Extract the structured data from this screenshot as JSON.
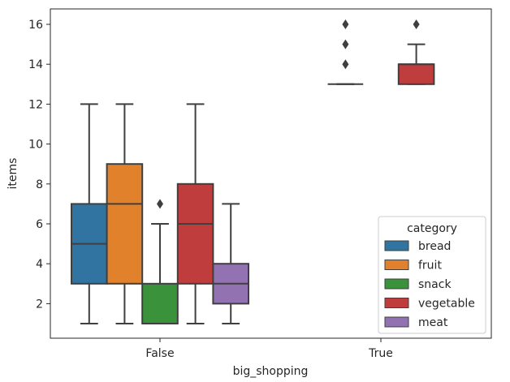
{
  "chart_data": {
    "type": "box",
    "xlabel": "big_shopping",
    "ylabel": "items",
    "categories": [
      "False",
      "True"
    ],
    "y_ticks": [
      2,
      4,
      6,
      8,
      10,
      12,
      14,
      16
    ],
    "ylim": [
      0.4,
      16.6
    ],
    "legend": {
      "title": "category",
      "placement": "lower right"
    },
    "series": [
      {
        "name": "bread",
        "color": "#3274a1",
        "boxes": [
          {
            "category": "False",
            "whisker_low": 1,
            "q1": 3,
            "median": 5,
            "q3": 7,
            "whisker_high": 12,
            "outliers": []
          },
          null
        ]
      },
      {
        "name": "fruit",
        "color": "#e1812c",
        "boxes": [
          {
            "category": "False",
            "whisker_low": 1,
            "q1": 3,
            "median": 7,
            "q3": 9,
            "whisker_high": 12,
            "outliers": []
          },
          {
            "category": "True",
            "whisker_low": 13,
            "q1": 13,
            "median": 13,
            "q3": 13,
            "whisker_high": 13,
            "outliers": [
              14,
              15,
              16
            ]
          }
        ]
      },
      {
        "name": "snack",
        "color": "#3a923a",
        "boxes": [
          {
            "category": "False",
            "whisker_low": 1,
            "q1": 1,
            "median": 1,
            "q3": 3,
            "whisker_high": 6,
            "outliers": [
              7
            ]
          },
          null
        ]
      },
      {
        "name": "vegetable",
        "color": "#c03d3e",
        "boxes": [
          {
            "category": "False",
            "whisker_low": 1,
            "q1": 3,
            "median": 6,
            "q3": 8,
            "whisker_high": 12,
            "outliers": []
          },
          {
            "category": "True",
            "whisker_low": 13,
            "q1": 13,
            "median": 14,
            "q3": 14,
            "whisker_high": 15,
            "outliers": [
              16
            ]
          }
        ]
      },
      {
        "name": "meat",
        "color": "#9372b2",
        "boxes": [
          {
            "category": "False",
            "whisker_low": 1,
            "q1": 2,
            "median": 3,
            "q3": 4,
            "whisker_high": 7,
            "outliers": []
          },
          null
        ]
      }
    ]
  }
}
